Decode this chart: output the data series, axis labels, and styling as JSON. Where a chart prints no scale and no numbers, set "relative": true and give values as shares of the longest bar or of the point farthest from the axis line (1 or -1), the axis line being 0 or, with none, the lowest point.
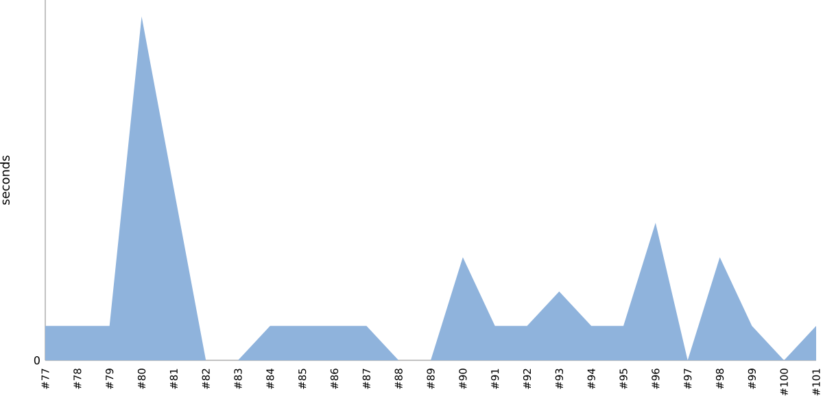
{
  "chart_data": {
    "type": "area",
    "ylabel": "seconds",
    "relative": true,
    "categories": [
      "#77",
      "#78",
      "#79",
      "#80",
      "#81",
      "#82",
      "#83",
      "#84",
      "#85",
      "#86",
      "#87",
      "#88",
      "#89",
      "#90",
      "#91",
      "#92",
      "#93",
      "#94",
      "#95",
      "#96",
      "#97",
      "#98",
      "#99",
      "#100",
      "#101"
    ],
    "series": [
      {
        "color": "#8fb3dc",
        "values": [
          0.1,
          0.1,
          0.1,
          1,
          0.5,
          0,
          0,
          0.1,
          0.1,
          0.1,
          0.1,
          0,
          0,
          0.3,
          0.1,
          0.1,
          0.2,
          0.1,
          0.1,
          0.4,
          0,
          0.3,
          0.1,
          0,
          0.1
        ]
      }
    ],
    "annotations": [
      "0"
    ]
  }
}
